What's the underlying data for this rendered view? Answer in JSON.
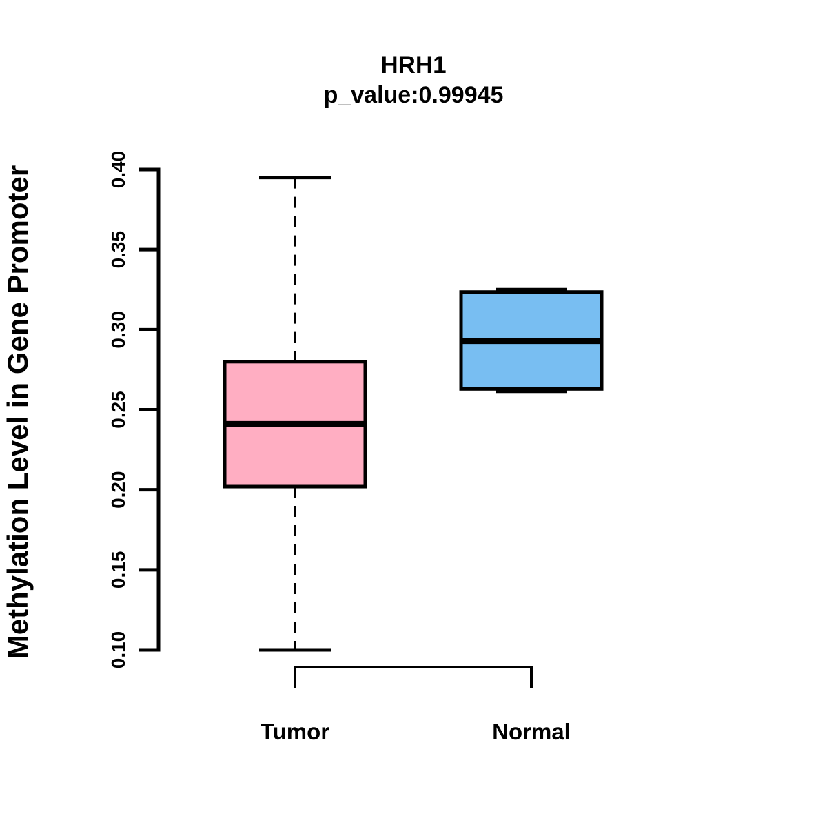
{
  "title": "HRH1",
  "subtitle": "p_value:0.99945",
  "chart_data": {
    "type": "boxplot",
    "title": "HRH1",
    "subtitle": "p_value:0.99945",
    "ylabel": "Methylation Level in Gene Promoter",
    "xlabel": "",
    "ylim": [
      0.1,
      0.4
    ],
    "yticks": [
      0.1,
      0.15,
      0.2,
      0.25,
      0.3,
      0.35,
      0.4
    ],
    "categories": [
      "Tumor",
      "Normal"
    ],
    "series": [
      {
        "name": "Tumor",
        "fill_color": "#FFAEC2",
        "whisker_low": 0.1,
        "q1": 0.202,
        "median": 0.241,
        "q3": 0.28,
        "whisker_high": 0.395
      },
      {
        "name": "Normal",
        "fill_color": "#78BEF2",
        "whisker_low": 0.2615,
        "q1": 0.263,
        "median": 0.293,
        "q3": 0.3235,
        "whisker_high": 0.325
      }
    ],
    "line_color": "#000000",
    "whisker_style": "dashed",
    "grid": false,
    "legend": false
  }
}
